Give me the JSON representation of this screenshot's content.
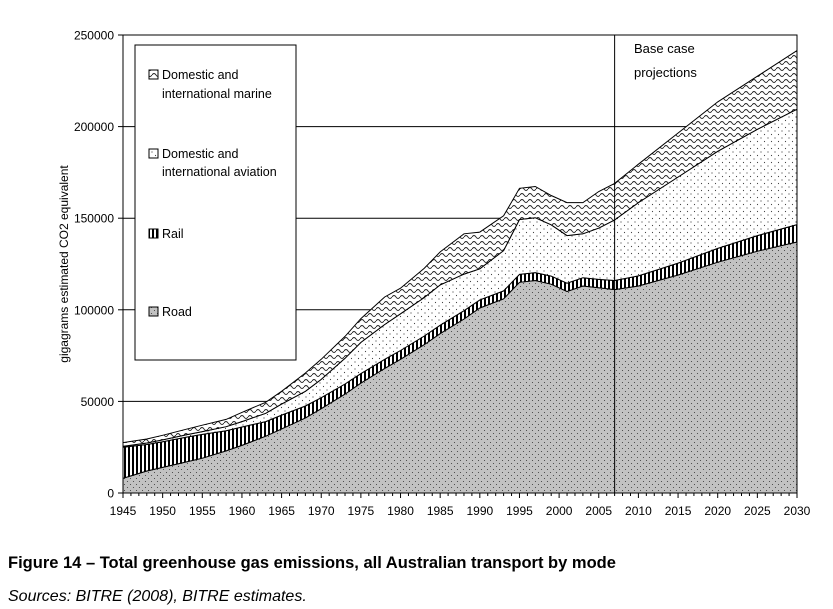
{
  "chart_data": {
    "type": "area",
    "stacked": true,
    "xlabel": "",
    "ylabel": "gigagrams estimated CO2 equivalent",
    "xlim": [
      1945,
      2030
    ],
    "ylim": [
      0,
      250000
    ],
    "x_ticks": [
      "1945",
      "1950",
      "1955",
      "1960",
      "1965",
      "1970",
      "1975",
      "1980",
      "1985",
      "1990",
      "1995",
      "2000",
      "2005",
      "2010",
      "2015",
      "2020",
      "2025",
      "2030"
    ],
    "y_ticks": [
      "0",
      "50000",
      "100000",
      "150000",
      "200000",
      "250000"
    ],
    "grid": "horizontal",
    "legend_position": "top-left",
    "annotation": {
      "x": 2007,
      "text_line1": "Base case",
      "text_line2": "projections"
    },
    "x": [
      1945,
      1948,
      1950,
      1953,
      1955,
      1958,
      1960,
      1963,
      1965,
      1968,
      1970,
      1973,
      1975,
      1978,
      1980,
      1983,
      1985,
      1988,
      1990,
      1993,
      1995,
      1997,
      1999,
      2001,
      2003,
      2005,
      2007,
      2010,
      2015,
      2020,
      2025,
      2030
    ],
    "series": [
      {
        "name": "Road",
        "fill": "#c0c0c0",
        "values": [
          8000,
          12000,
          14000,
          17000,
          19000,
          23000,
          26000,
          31000,
          35000,
          41000,
          46000,
          54000,
          60000,
          68000,
          73000,
          81000,
          87000,
          95000,
          101000,
          106000,
          115000,
          116000,
          114000,
          110000,
          113000,
          112000,
          111000,
          113000,
          119000,
          126000,
          132000,
          137000
        ]
      },
      {
        "name": "Rail",
        "fill": "#000000",
        "values": [
          17000,
          14500,
          14000,
          13500,
          13000,
          11000,
          10000,
          8000,
          7500,
          6500,
          6000,
          5500,
          5200,
          5000,
          4800,
          4700,
          4600,
          4500,
          4400,
          4300,
          4300,
          4300,
          4400,
          4500,
          4500,
          4600,
          5000,
          5500,
          6500,
          7500,
          8500,
          9500
        ]
      },
      {
        "name": "Domestic and international aviation",
        "fill": "#ffffff",
        "values": [
          500,
          800,
          1000,
          1300,
          1500,
          2200,
          3000,
          4500,
          6000,
          8000,
          10000,
          14000,
          17000,
          19000,
          20000,
          21000,
          22000,
          20000,
          17000,
          22000,
          30000,
          30000,
          28000,
          26000,
          24000,
          28000,
          33000,
          40000,
          47000,
          53000,
          58000,
          63000
        ]
      },
      {
        "name": "Domestic and international marine",
        "fill": "#ffffff",
        "values": [
          2000,
          2200,
          2500,
          3000,
          3500,
          4000,
          5000,
          6000,
          7000,
          10000,
          11000,
          12000,
          13000,
          15000,
          14000,
          16000,
          18000,
          22000,
          20000,
          19000,
          17000,
          17000,
          16000,
          18000,
          17000,
          20000,
          20000,
          21000,
          24000,
          27000,
          29000,
          32000
        ]
      }
    ]
  },
  "caption": {
    "title": "Figure 14 – Total greenhouse gas emissions, all Australian transport by mode",
    "source": "Sources: BITRE (2008), BITRE estimates."
  }
}
